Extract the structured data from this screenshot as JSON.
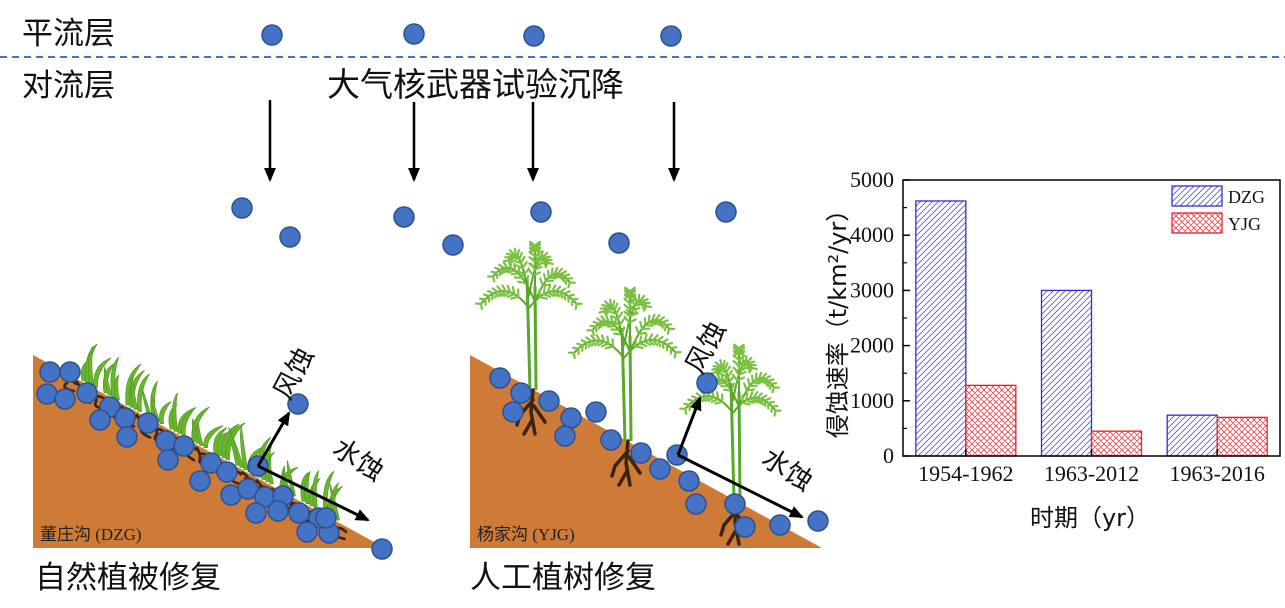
{
  "layers": {
    "stratosphere": "平流层",
    "troposphere": "对流层"
  },
  "fallout_source": "大气核武器试验沉降",
  "sites": [
    {
      "label": "董庄沟 (DZG)",
      "caption": "自然植被修复",
      "wind_erosion": "风蚀",
      "water_erosion": "水蚀"
    },
    {
      "label": "杨家沟 (YJG)",
      "caption": "人工植树修复",
      "wind_erosion": "风蚀",
      "water_erosion": "水蚀"
    }
  ],
  "colors": {
    "soil": "#cd7b36",
    "particle": "#4472c4",
    "particle_edge": "#2f528f",
    "source_text": "#00b050",
    "boundary": "#4472c4",
    "grass": "#6cb52f",
    "tree_leaf": "#7cc242",
    "tree_stem": "#5aa82a",
    "roots": "#3a2412"
  },
  "chart_data": {
    "type": "bar",
    "categories": [
      "1954-1962",
      "1963-2012",
      "1963-2016"
    ],
    "series": [
      {
        "name": "DZG",
        "values": [
          4620,
          3000,
          740
        ],
        "color": "#2e2ee0"
      },
      {
        "name": "YJG",
        "values": [
          1280,
          450,
          700
        ],
        "color": "#e8232a"
      }
    ],
    "xlabel": "时期（yr）",
    "ylabel": "侵蚀速率（t/km²/yr）",
    "ylim": [
      0,
      5000
    ],
    "yticks": [
      0,
      1000,
      2000,
      3000,
      4000,
      5000
    ],
    "grid": false,
    "legend": "top-right"
  }
}
